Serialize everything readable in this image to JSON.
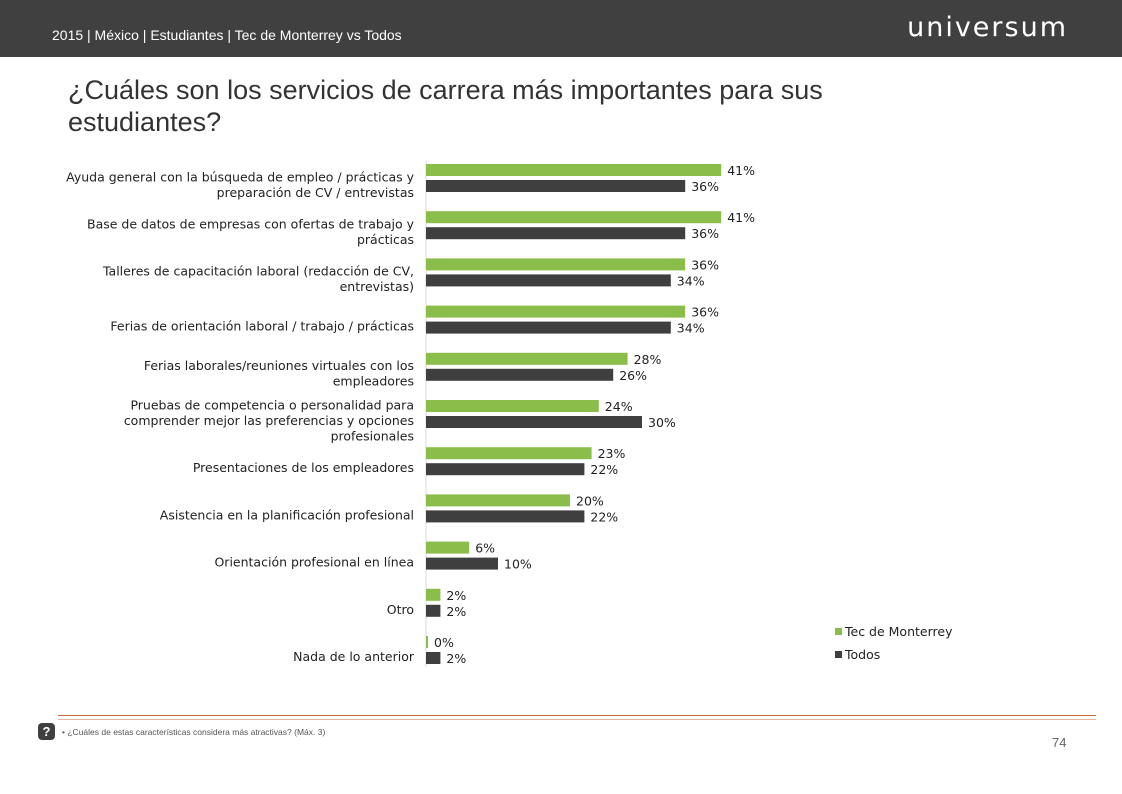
{
  "header": {
    "breadcrumb": "2015 | México | Estudiantes | Tec de Monterrey vs Todos",
    "logo_text": "universum"
  },
  "page_title": "¿Cuáles son los servicios de carrera más importantes para sus estudiantes?",
  "footer": {
    "question_icon": "?",
    "bullet": "•",
    "footnote": "¿Cuáles de estas características considera más atractivas? (Máx. 3)",
    "page_number": "74"
  },
  "colors": {
    "tec": "#8bbd4b",
    "todos": "#3f3f3f",
    "header_bg": "#404040",
    "accent_line": "#c96a3c"
  },
  "chart_data": {
    "type": "bar",
    "orientation": "horizontal",
    "title": "",
    "xlabel": "",
    "ylabel": "",
    "xlim": [
      0,
      41
    ],
    "grid": false,
    "legend_position": "bottom-right",
    "value_suffix": "%",
    "categories": [
      [
        "Ayuda general con la búsqueda de empleo / prácticas y",
        "preparación de CV / entrevistas"
      ],
      [
        "Base de datos de empresas con ofertas de trabajo y",
        "prácticas"
      ],
      [
        "Talleres de capacitación laboral (redacción de CV,",
        "entrevistas)"
      ],
      [
        "Ferias de orientación laboral / trabajo / prácticas"
      ],
      [
        "Ferias laborales/reuniones virtuales con los",
        "empleadores"
      ],
      [
        "Pruebas de competencia o personalidad para",
        "comprender mejor las preferencias y opciones",
        "profesionales"
      ],
      [
        "Presentaciones de los empleadores"
      ],
      [
        "Asistencia en la planificación profesional"
      ],
      [
        "Orientación profesional en línea"
      ],
      [
        "Otro"
      ],
      [
        "Nada de lo anterior"
      ]
    ],
    "series": [
      {
        "name": "Tec de Monterrey",
        "values": [
          41,
          41,
          36,
          36,
          28,
          24,
          23,
          20,
          6,
          2,
          0
        ]
      },
      {
        "name": "Todos",
        "values": [
          36,
          36,
          34,
          34,
          26,
          30,
          22,
          22,
          10,
          2,
          2
        ]
      }
    ]
  }
}
